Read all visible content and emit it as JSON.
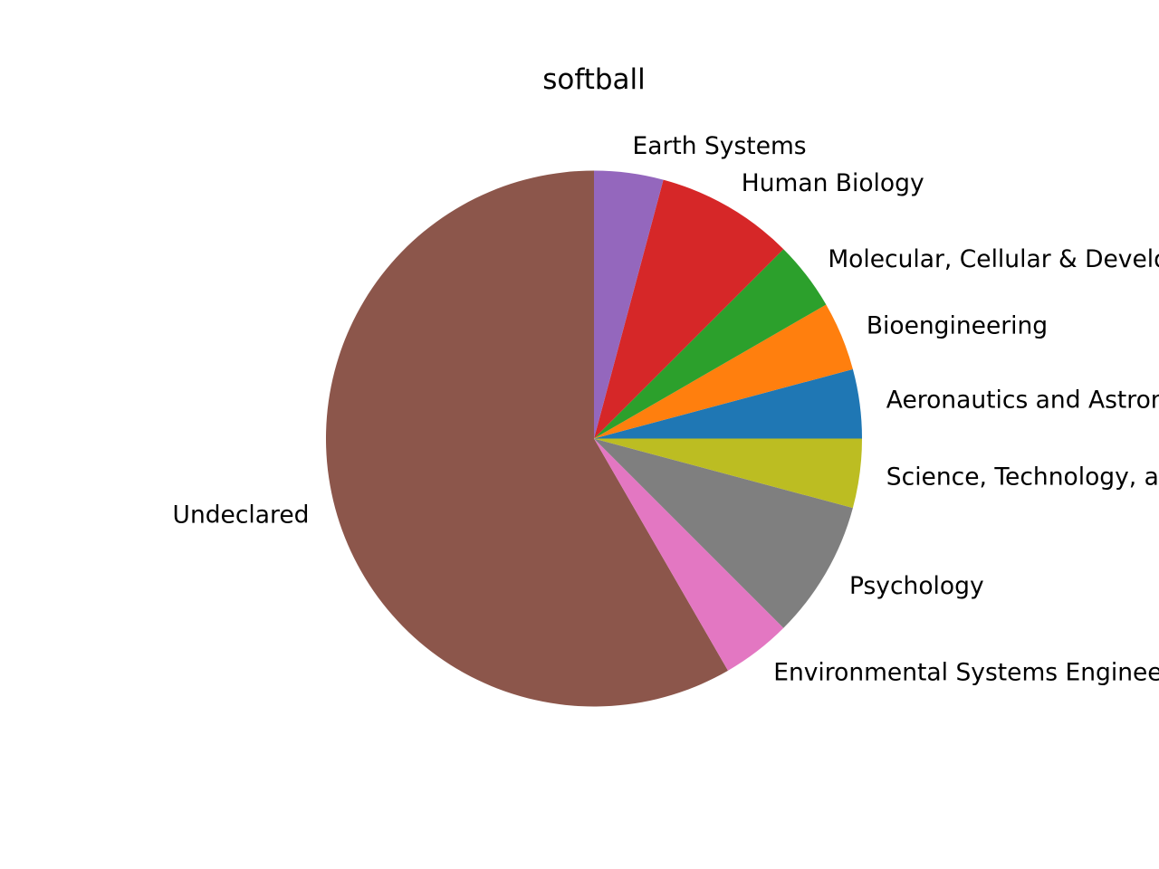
{
  "chart_data": {
    "type": "pie",
    "title": "softball",
    "start_angle_deg": 0,
    "direction": "counterclockwise",
    "slices": [
      {
        "label": "Aeronautics and Astronautics",
        "value": 1,
        "color": "#1f77b4"
      },
      {
        "label": "Bioengineering",
        "value": 1,
        "color": "#ff7f0e"
      },
      {
        "label": "Molecular, Cellular & Developmental Biology",
        "value": 1,
        "color": "#2ca02c"
      },
      {
        "label": "Human Biology",
        "value": 2,
        "color": "#d62728"
      },
      {
        "label": "Earth Systems",
        "value": 1,
        "color": "#9467bd"
      },
      {
        "label": "Undeclared",
        "value": 14,
        "color": "#8c564b"
      },
      {
        "label": "Environmental Systems Engineering",
        "value": 1,
        "color": "#e377c2"
      },
      {
        "label": "Psychology",
        "value": 2,
        "color": "#7f7f7f"
      },
      {
        "label": "Science, Technology, and Society",
        "value": 1,
        "color": "#bcbd22"
      }
    ]
  }
}
